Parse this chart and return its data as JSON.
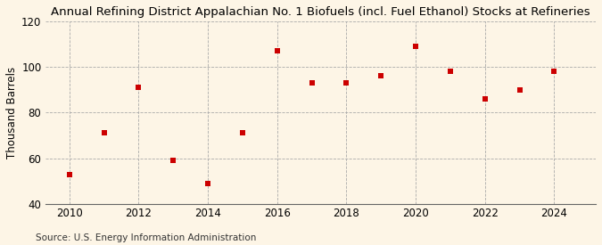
{
  "title": "Annual Refining District Appalachian No. 1 Biofuels (incl. Fuel Ethanol) Stocks at Refineries",
  "ylabel": "Thousand Barrels",
  "source": "Source: U.S. Energy Information Administration",
  "years": [
    2010,
    2011,
    2012,
    2013,
    2014,
    2015,
    2016,
    2017,
    2018,
    2019,
    2020,
    2021,
    2022,
    2023,
    2024
  ],
  "values": [
    53,
    71,
    91,
    59,
    49,
    71,
    107,
    93,
    93,
    96,
    109,
    98,
    86,
    90,
    98
  ],
  "marker_color": "#cc0000",
  "marker": "s",
  "marker_size": 4,
  "bg_color": "#fdf5e6",
  "grid_color": "#aaaaaa",
  "ylim": [
    40,
    120
  ],
  "yticks": [
    40,
    60,
    80,
    100,
    120
  ],
  "xlim": [
    2009.3,
    2025.2
  ],
  "xticks": [
    2010,
    2012,
    2014,
    2016,
    2018,
    2020,
    2022,
    2024
  ],
  "title_fontsize": 9.5,
  "axis_fontsize": 8.5,
  "source_fontsize": 7.5
}
